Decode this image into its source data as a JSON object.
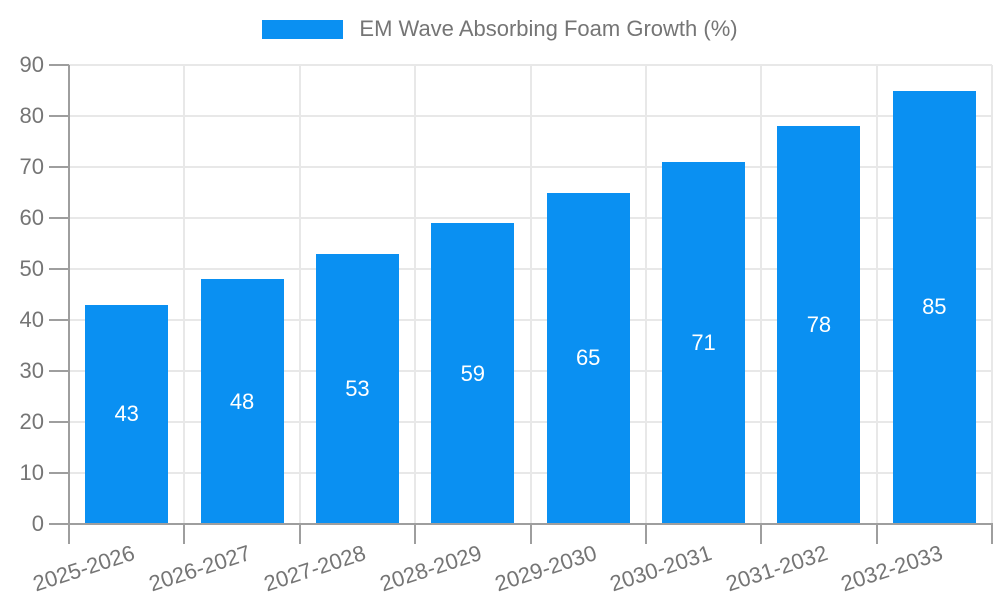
{
  "chart_data": {
    "type": "bar",
    "title": "EM Wave Absorbing Foam Growth (%)",
    "legend_position": "top",
    "categories": [
      "2025-2026",
      "2026-2027",
      "2027-2028",
      "2028-2029",
      "2029-2030",
      "2030-2031",
      "2031-2032",
      "2032-2033"
    ],
    "values": [
      43,
      48,
      53,
      59,
      65,
      71,
      78,
      85
    ],
    "ylim": [
      0,
      90
    ],
    "yticks": [
      0,
      10,
      20,
      30,
      40,
      50,
      60,
      70,
      80,
      90
    ],
    "grid": true,
    "bar_value_labels_shown": true,
    "colors": {
      "bar": "#0a90f2",
      "bar_label": "#ffffff",
      "axis": "#9e9e9e",
      "gridline": "#e8e8e8",
      "text": "#757575",
      "background": "#ffffff"
    }
  }
}
